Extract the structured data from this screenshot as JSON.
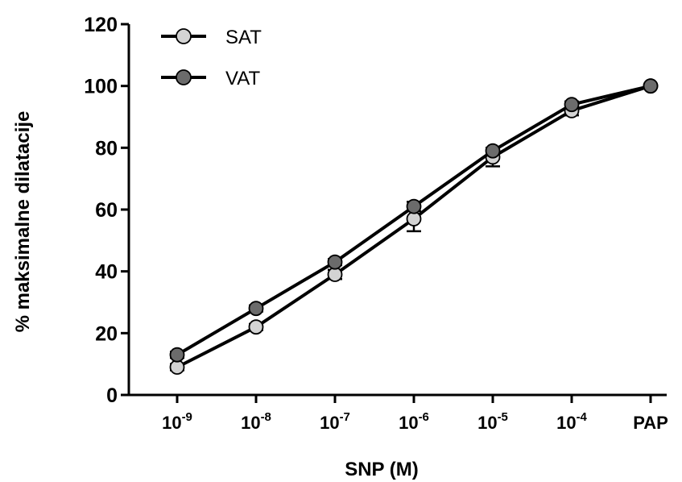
{
  "chart_data": {
    "type": "line",
    "xlabel": "SNP (M)",
    "ylabel": "% maksimalne dilatacije",
    "ylim": [
      0,
      120
    ],
    "yticks": [
      0,
      20,
      40,
      60,
      80,
      100,
      120
    ],
    "categories": [
      {
        "base": "10",
        "exp": "-9"
      },
      {
        "base": "10",
        "exp": "-8"
      },
      {
        "base": "10",
        "exp": "-7"
      },
      {
        "base": "10",
        "exp": "-6"
      },
      {
        "base": "10",
        "exp": "-5"
      },
      {
        "base": "10",
        "exp": "-4"
      },
      {
        "base": "PAP",
        "exp": ""
      }
    ],
    "legend_position": "top-left",
    "series": [
      {
        "name": "SAT",
        "color": "#d3d3d3",
        "values": [
          9,
          22,
          39,
          57,
          77,
          92,
          100
        ],
        "errors": [
          1,
          1,
          1.5,
          4,
          3,
          1.5,
          0
        ]
      },
      {
        "name": "VAT",
        "color": "#6b6b6b",
        "values": [
          13,
          28,
          43,
          61,
          79,
          94,
          100
        ],
        "errors": [
          1,
          1,
          1,
          1.5,
          1,
          1,
          0
        ]
      }
    ]
  }
}
